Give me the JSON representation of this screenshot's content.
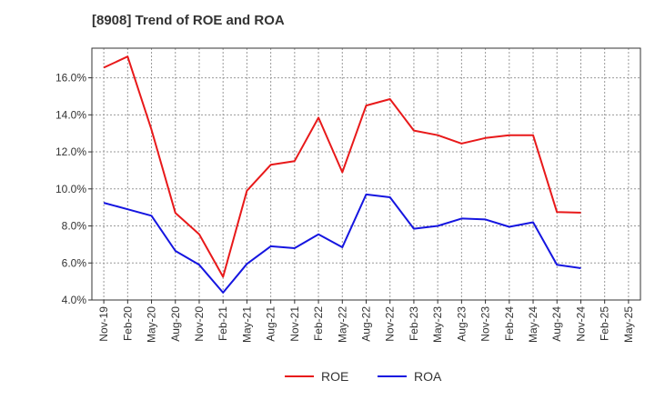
{
  "chart_data": {
    "type": "line",
    "title": "[8908]  Trend of ROE and ROA",
    "xlabel": "",
    "ylabel": "",
    "categories": [
      "Nov-19",
      "Feb-20",
      "May-20",
      "Aug-20",
      "Nov-20",
      "Feb-21",
      "May-21",
      "Aug-21",
      "Nov-21",
      "Feb-22",
      "May-22",
      "Aug-22",
      "Nov-22",
      "Feb-23",
      "May-23",
      "Aug-23",
      "Nov-23",
      "Feb-24",
      "May-24",
      "Aug-24",
      "Nov-24",
      "Feb-25",
      "May-25"
    ],
    "ylim": [
      4.0,
      17.6
    ],
    "yticks": [
      4.0,
      6.0,
      8.0,
      10.0,
      12.0,
      14.0,
      16.0
    ],
    "ytick_labels": [
      "4.0%",
      "6.0%",
      "8.0%",
      "10.0%",
      "12.0%",
      "14.0%",
      "16.0%"
    ],
    "grid": true,
    "legend_position": "bottom",
    "series": [
      {
        "name": "ROE",
        "color": "#e8191a",
        "values": [
          16.55,
          17.15,
          13.2,
          8.7,
          7.55,
          5.25,
          9.9,
          11.3,
          11.5,
          13.85,
          10.9,
          14.5,
          14.85,
          13.15,
          12.9,
          12.45,
          12.75,
          12.9,
          12.9,
          8.75,
          8.72,
          null,
          null
        ]
      },
      {
        "name": "ROA",
        "color": "#1515e0",
        "values": [
          9.25,
          8.9,
          8.55,
          6.65,
          5.9,
          4.4,
          5.95,
          6.9,
          6.8,
          7.55,
          6.85,
          9.7,
          9.55,
          7.85,
          8.0,
          8.4,
          8.35,
          7.95,
          8.2,
          5.9,
          5.72,
          null,
          null
        ]
      }
    ]
  }
}
